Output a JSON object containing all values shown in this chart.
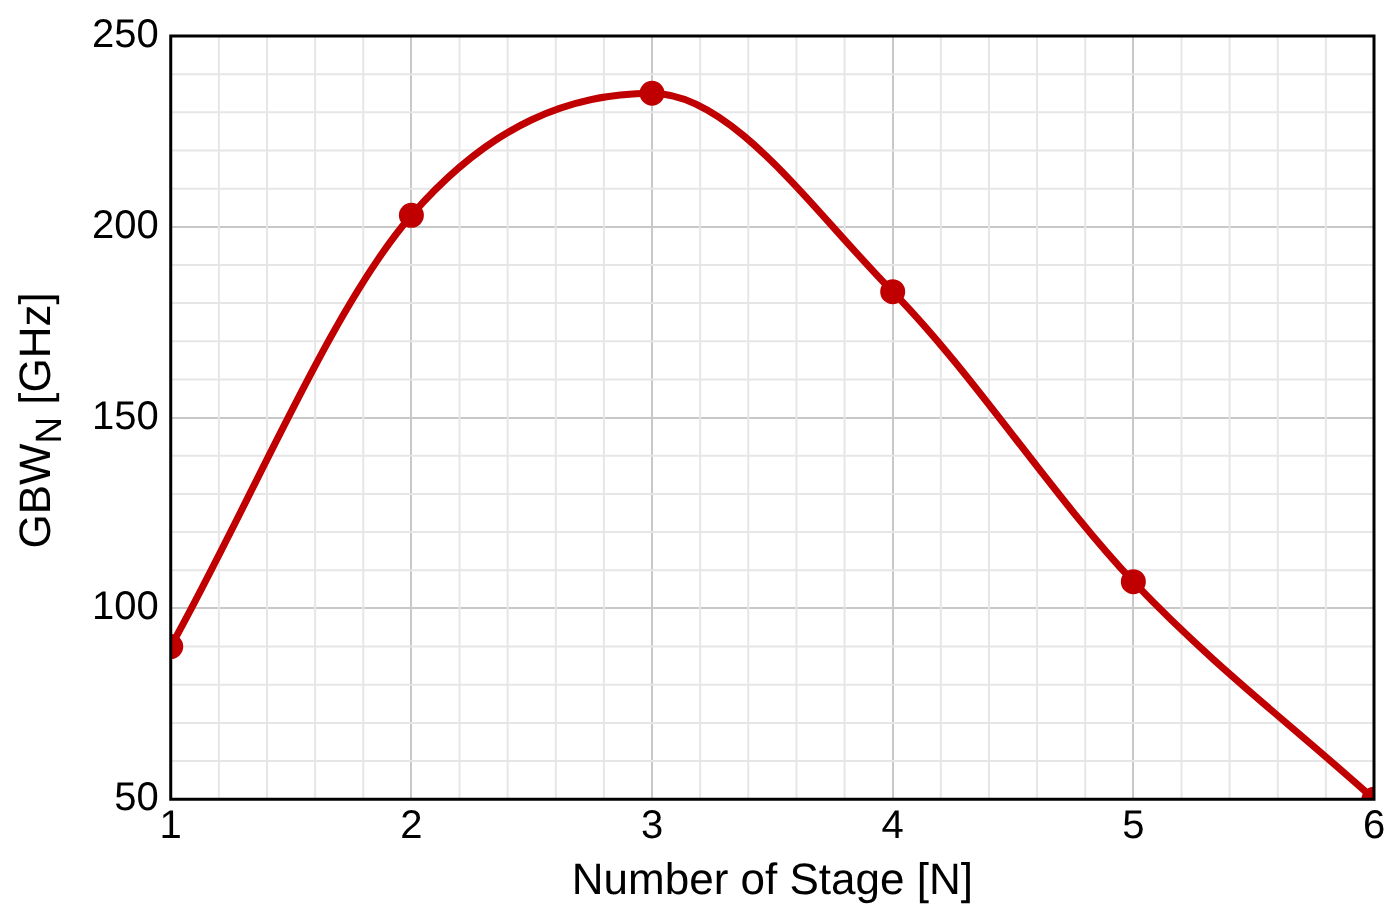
{
  "chart_data": {
    "type": "line",
    "xlabel": "Number of Stage [N]",
    "ylabel": "GBW$_{N}$ [GHz]",
    "x": [
      1,
      2,
      3,
      4,
      5,
      6
    ],
    "series": [
      {
        "color": "#c00000",
        "values": [
          90,
          203,
          235,
          183,
          107,
          50
        ]
      }
    ],
    "xlim": [
      1,
      6
    ],
    "xticks": [
      1,
      2,
      3,
      4,
      5,
      6
    ],
    "ylim": [
      50,
      250
    ],
    "yticks": [
      50,
      100,
      150,
      200,
      250
    ],
    "grid": true,
    "marker": "circle",
    "line_style": "solid"
  }
}
